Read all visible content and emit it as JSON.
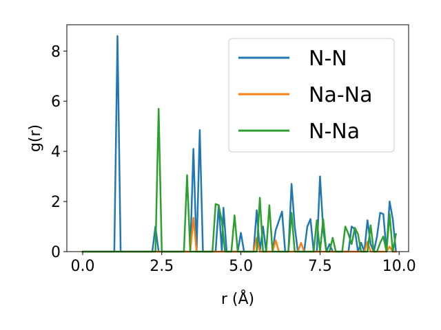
{
  "chart_data": {
    "type": "line",
    "xlabel": "r (Å)",
    "ylabel": "g(r)",
    "xlim": [
      -0.5,
      10.3
    ],
    "ylim": [
      0,
      9.05
    ],
    "xticks": [
      0.0,
      2.5,
      5.0,
      7.5,
      10.0
    ],
    "xtick_labels": [
      "0.0",
      "2.5",
      "5.0",
      "7.5",
      "10.0"
    ],
    "yticks": [
      0,
      2,
      4,
      6,
      8
    ],
    "ytick_labels": [
      "0",
      "2",
      "4",
      "6",
      "8"
    ],
    "grid": false,
    "legend_position": "top-right",
    "series": [
      {
        "name": "N-N",
        "color": "#1f77b4",
        "points": [
          [
            0.0,
            0
          ],
          [
            1.0,
            0
          ],
          [
            1.1,
            8.6
          ],
          [
            1.2,
            0
          ],
          [
            2.2,
            0
          ],
          [
            2.3,
            1.0
          ],
          [
            2.4,
            0
          ],
          [
            3.4,
            0
          ],
          [
            3.5,
            4.1
          ],
          [
            3.6,
            0
          ],
          [
            3.7,
            4.85
          ],
          [
            3.8,
            0
          ],
          [
            4.2,
            0
          ],
          [
            4.3,
            1.85
          ],
          [
            4.4,
            0
          ],
          [
            4.45,
            1.75
          ],
          [
            4.55,
            0
          ],
          [
            4.9,
            0
          ],
          [
            5.0,
            0.75
          ],
          [
            5.1,
            0
          ],
          [
            5.4,
            0
          ],
          [
            5.5,
            1.65
          ],
          [
            5.6,
            0
          ],
          [
            5.7,
            1.0
          ],
          [
            5.8,
            0
          ],
          [
            6.0,
            0
          ],
          [
            6.1,
            0.85
          ],
          [
            6.3,
            1.6
          ],
          [
            6.4,
            0
          ],
          [
            6.5,
            0
          ],
          [
            6.6,
            2.7
          ],
          [
            6.7,
            1.0
          ],
          [
            6.8,
            0
          ],
          [
            7.0,
            0
          ],
          [
            7.1,
            1.0
          ],
          [
            7.2,
            1.3
          ],
          [
            7.3,
            0
          ],
          [
            7.4,
            0
          ],
          [
            7.5,
            3.0
          ],
          [
            7.6,
            0.9
          ],
          [
            7.7,
            0
          ],
          [
            7.8,
            0.3
          ],
          [
            7.9,
            0
          ],
          [
            8.4,
            0
          ],
          [
            8.5,
            1.0
          ],
          [
            8.6,
            0.9
          ],
          [
            8.7,
            0
          ],
          [
            8.8,
            0.35
          ],
          [
            8.9,
            0
          ],
          [
            9.0,
            1.25
          ],
          [
            9.1,
            0.3
          ],
          [
            9.2,
            0
          ],
          [
            9.3,
            0.6
          ],
          [
            9.4,
            1.55
          ],
          [
            9.5,
            1.5
          ],
          [
            9.6,
            0
          ],
          [
            9.7,
            2.0
          ],
          [
            9.8,
            1.3
          ],
          [
            9.9,
            0
          ]
        ]
      },
      {
        "name": "Na-Na",
        "color": "#ff7f0e",
        "points": [
          [
            0.0,
            0
          ],
          [
            3.4,
            0
          ],
          [
            3.5,
            1.35
          ],
          [
            3.6,
            0
          ],
          [
            5.4,
            0
          ],
          [
            5.5,
            0.55
          ],
          [
            5.6,
            0
          ],
          [
            6.0,
            0
          ],
          [
            6.1,
            0.45
          ],
          [
            6.2,
            0
          ],
          [
            6.8,
            0
          ],
          [
            6.9,
            0.35
          ],
          [
            7.0,
            0
          ],
          [
            8.9,
            0
          ],
          [
            9.0,
            0.4
          ],
          [
            9.1,
            0
          ],
          [
            9.6,
            0
          ],
          [
            9.7,
            0.2
          ],
          [
            9.8,
            0
          ],
          [
            9.9,
            0
          ]
        ]
      },
      {
        "name": "N-Na",
        "color": "#2ca02c",
        "points": [
          [
            0.0,
            0
          ],
          [
            2.3,
            0
          ],
          [
            2.4,
            5.7
          ],
          [
            2.5,
            0
          ],
          [
            3.2,
            0
          ],
          [
            3.3,
            3.05
          ],
          [
            3.4,
            0
          ],
          [
            4.1,
            0
          ],
          [
            4.2,
            1.9
          ],
          [
            4.3,
            1.85
          ],
          [
            4.4,
            1.2
          ],
          [
            4.5,
            0
          ],
          [
            4.7,
            0
          ],
          [
            4.8,
            1.45
          ],
          [
            4.9,
            0
          ],
          [
            5.5,
            0
          ],
          [
            5.6,
            2.15
          ],
          [
            5.7,
            0
          ],
          [
            5.8,
            0
          ],
          [
            5.9,
            1.85
          ],
          [
            6.0,
            0
          ],
          [
            6.5,
            0
          ],
          [
            6.6,
            1.55
          ],
          [
            6.7,
            0
          ],
          [
            7.3,
            0
          ],
          [
            7.4,
            1.25
          ],
          [
            7.5,
            0
          ],
          [
            7.6,
            1.3
          ],
          [
            7.7,
            0
          ],
          [
            7.8,
            0
          ],
          [
            7.9,
            0.55
          ],
          [
            8.0,
            0
          ],
          [
            8.2,
            0
          ],
          [
            8.3,
            1.0
          ],
          [
            8.4,
            0.7
          ],
          [
            8.5,
            0.3
          ],
          [
            8.6,
            0.95
          ],
          [
            8.7,
            0.7
          ],
          [
            8.8,
            0
          ],
          [
            9.0,
            0
          ],
          [
            9.1,
            1.05
          ],
          [
            9.2,
            0
          ],
          [
            9.3,
            0
          ],
          [
            9.4,
            0.35
          ],
          [
            9.5,
            0.6
          ],
          [
            9.6,
            0
          ],
          [
            9.7,
            1.5
          ],
          [
            9.8,
            0
          ],
          [
            9.9,
            0.7
          ]
        ]
      }
    ]
  }
}
